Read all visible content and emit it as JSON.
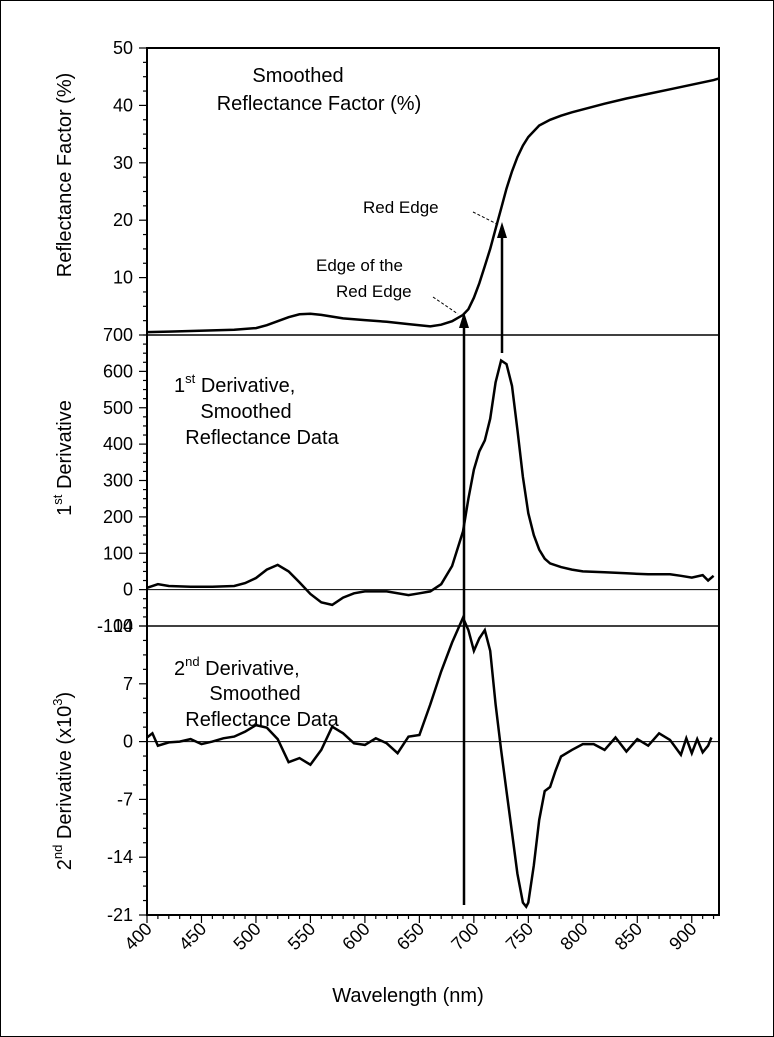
{
  "chart_data": [
    {
      "type": "line",
      "title": "Smoothed Reflectance Factor (%)",
      "title_lines": [
        "Smoothed",
        "Reflectance Factor (%)"
      ],
      "ylabel": "Reflectance Factor (%)",
      "ylim": [
        0,
        50
      ],
      "yticks": [
        10,
        20,
        30,
        40,
        50
      ],
      "xlim": [
        400,
        925
      ],
      "series": [
        {
          "x": [
            400,
            420,
            440,
            460,
            480,
            500,
            510,
            520,
            530,
            540,
            550,
            560,
            570,
            580,
            600,
            620,
            640,
            660,
            670,
            680,
            690,
            695,
            700,
            705,
            710,
            715,
            720,
            725,
            730,
            735,
            740,
            745,
            750,
            760,
            770,
            780,
            790,
            800,
            820,
            840,
            860,
            880,
            900,
            920,
            925
          ],
          "y": [
            0.5,
            0.6,
            0.7,
            0.8,
            0.9,
            1.2,
            1.7,
            2.4,
            3.1,
            3.6,
            3.7,
            3.5,
            3.2,
            2.9,
            2.6,
            2.3,
            1.9,
            1.5,
            1.8,
            2.4,
            3.5,
            4.5,
            6.5,
            9.0,
            12.0,
            15.0,
            18.5,
            22.0,
            25.5,
            28.5,
            31.0,
            33.0,
            34.5,
            36.5,
            37.5,
            38.2,
            38.8,
            39.3,
            40.3,
            41.2,
            42.0,
            42.8,
            43.6,
            44.4,
            44.7
          ]
        }
      ],
      "annotations": [
        {
          "label": "Red Edge",
          "x": 728,
          "y": 20
        },
        {
          "label_lines": [
            "Edge of the",
            "Red Edge"
          ],
          "x": 693,
          "y": 3.5
        }
      ]
    },
    {
      "type": "line",
      "title_lines": [
        "Derivative,",
        "Smoothed",
        "Reflectance Data"
      ],
      "title_prefix": {
        "base": "1",
        "sup": "st"
      },
      "ylabel_parts": {
        "base": "1",
        "sup": "st",
        "rest": " Derivative"
      },
      "ylim": [
        -100,
        700
      ],
      "yticks": [
        -100,
        0,
        100,
        200,
        300,
        400,
        500,
        600,
        700
      ],
      "xlim": [
        400,
        925
      ],
      "series": [
        {
          "x": [
            400,
            410,
            420,
            440,
            460,
            480,
            490,
            500,
            510,
            520,
            530,
            540,
            550,
            560,
            570,
            580,
            590,
            600,
            620,
            640,
            650,
            660,
            670,
            680,
            690,
            695,
            700,
            705,
            710,
            715,
            720,
            725,
            730,
            735,
            740,
            745,
            750,
            755,
            760,
            765,
            770,
            780,
            790,
            800,
            820,
            840,
            860,
            880,
            890,
            900,
            910,
            915,
            920
          ],
          "y": [
            5,
            15,
            10,
            8,
            8,
            10,
            18,
            32,
            55,
            68,
            50,
            20,
            -12,
            -35,
            -42,
            -22,
            -10,
            -5,
            -5,
            -15,
            -10,
            -5,
            15,
            65,
            160,
            250,
            330,
            380,
            410,
            470,
            570,
            630,
            620,
            560,
            440,
            310,
            210,
            150,
            110,
            85,
            72,
            62,
            55,
            50,
            48,
            45,
            42,
            42,
            38,
            33,
            40,
            25,
            38
          ]
        }
      ]
    },
    {
      "type": "line",
      "title_lines": [
        "Derivative,",
        "Smoothed",
        "Reflectance Data"
      ],
      "title_prefix": {
        "base": "2",
        "sup": "nd"
      },
      "ylabel_parts": {
        "base": "2",
        "sup": "nd",
        "rest": " Derivative (x10",
        "sup2": "3",
        "end": ")"
      },
      "ylim": [
        -21,
        14
      ],
      "yticks": [
        -21,
        -14,
        -7,
        0,
        7,
        14
      ],
      "xlabel": "Wavelength (nm)",
      "xticks": [
        400,
        450,
        500,
        550,
        600,
        650,
        700,
        750,
        800,
        850,
        900
      ],
      "xlim": [
        400,
        925
      ],
      "series": [
        {
          "x": [
            400,
            405,
            410,
            420,
            430,
            440,
            450,
            460,
            470,
            480,
            490,
            500,
            510,
            520,
            530,
            540,
            550,
            560,
            570,
            580,
            590,
            600,
            610,
            620,
            630,
            640,
            650,
            660,
            670,
            680,
            690,
            695,
            700,
            705,
            710,
            715,
            720,
            725,
            730,
            735,
            740,
            745,
            748,
            750,
            755,
            760,
            765,
            770,
            775,
            780,
            790,
            800,
            810,
            820,
            830,
            840,
            850,
            860,
            870,
            880,
            890,
            895,
            900,
            905,
            910,
            915,
            918
          ],
          "y": [
            0.5,
            1.0,
            -0.5,
            -0.1,
            0,
            0.3,
            -0.3,
            0,
            0.4,
            0.6,
            1.2,
            2.0,
            1.7,
            0.3,
            -2.5,
            -2.0,
            -2.8,
            -1.0,
            1.8,
            1.0,
            -0.2,
            -0.4,
            0.4,
            -0.2,
            -1.4,
            0.6,
            0.8,
            4.5,
            8.5,
            12.0,
            15.0,
            13.5,
            11.0,
            12.5,
            13.5,
            11.0,
            4.5,
            -1.0,
            -6.0,
            -11.0,
            -16.0,
            -19.5,
            -20.0,
            -19.5,
            -15.0,
            -9.5,
            -6.0,
            -5.5,
            -3.5,
            -1.8,
            -1.0,
            -0.3,
            -0.3,
            -1.0,
            0.5,
            -1.2,
            0.3,
            -0.5,
            1.0,
            0.2,
            -1.6,
            0.4,
            -1.4,
            0.3,
            -1.3,
            -0.5,
            0.5
          ]
        }
      ]
    }
  ]
}
